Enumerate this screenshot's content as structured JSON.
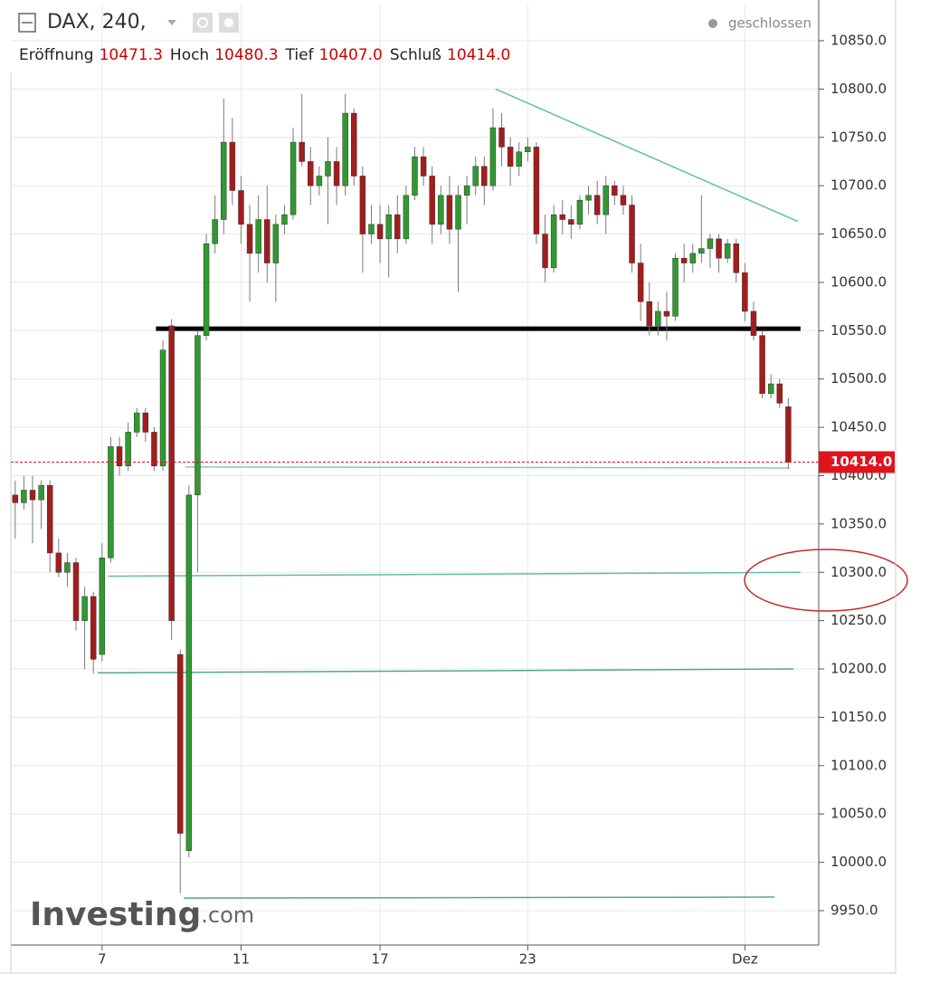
{
  "chart_data": {
    "type": "candlestick",
    "title": "DAX, 240,",
    "status": "geschlossen",
    "ohlc_header": [
      {
        "name": "Eröffnung",
        "value": "10471.3"
      },
      {
        "name": "Hoch",
        "value": "10480.3"
      },
      {
        "name": "Tief",
        "value": "10407.0"
      },
      {
        "name": "Schluß",
        "value": "10414.0"
      }
    ],
    "watermark": [
      "Investing",
      ".com"
    ],
    "up_color": "#2f9a2f",
    "down_color": "#a51c1c",
    "wick_color": "#7a7a7a",
    "open": [
      10380,
      10372,
      10385,
      10375,
      10390,
      10320,
      10300,
      10310,
      10250,
      10275,
      10215,
      10315,
      10430,
      10410,
      10445,
      10465,
      10445,
      10410,
      10555,
      10215,
      10012,
      10380,
      10545,
      10640,
      10665,
      10745,
      10695,
      10660,
      10630,
      10665,
      10620,
      10660,
      10670,
      10745,
      10725,
      10700,
      10710,
      10725,
      10700,
      10775,
      10710,
      10650,
      10660,
      10645,
      10670,
      10645,
      10690,
      10730,
      10710,
      10660,
      10690,
      10655,
      10690,
      10700,
      10720,
      10700,
      10760,
      10740,
      10720,
      10735,
      10740,
      10650,
      10615,
      10670,
      10665,
      10660,
      10685,
      10690,
      10670,
      10700,
      10690,
      10680,
      10620,
      10580,
      10555,
      10570,
      10565,
      10625,
      10620,
      10630,
      10635,
      10645,
      10625,
      10640,
      10610,
      10570,
      10545,
      10485,
      10495,
      10471.3
    ],
    "high": [
      10395,
      10400,
      10400,
      10395,
      10395,
      10335,
      10320,
      10315,
      10285,
      10280,
      10330,
      10440,
      10440,
      10455,
      10470,
      10470,
      10450,
      10540,
      10562,
      10220,
      10390,
      10550,
      10650,
      10690,
      10790,
      10770,
      10710,
      10680,
      10690,
      10700,
      10670,
      10680,
      10760,
      10795,
      10740,
      10720,
      10750,
      10740,
      10795,
      10780,
      10720,
      10680,
      10680,
      10680,
      10690,
      10700,
      10740,
      10740,
      10720,
      10700,
      10710,
      10700,
      10710,
      10730,
      10730,
      10780,
      10775,
      10750,
      10745,
      10750,
      10745,
      10670,
      10680,
      10685,
      10680,
      10690,
      10700,
      10705,
      10710,
      10705,
      10700,
      10690,
      10640,
      10600,
      10580,
      10590,
      10630,
      10640,
      10640,
      10690,
      10650,
      10650,
      10645,
      10645,
      10620,
      10580,
      10550,
      10505,
      10500,
      10480.3
    ],
    "low": [
      10335,
      10365,
      10330,
      10345,
      10300,
      10295,
      10285,
      10240,
      10200,
      10195,
      10208,
      10310,
      10400,
      10405,
      10440,
      10435,
      10405,
      10405,
      10230,
      9968,
      10005,
      10300,
      10540,
      10630,
      10650,
      10680,
      10640,
      10580,
      10610,
      10600,
      10580,
      10650,
      10665,
      10720,
      10680,
      10690,
      10660,
      10680,
      10690,
      10700,
      10610,
      10640,
      10620,
      10605,
      10630,
      10640,
      10685,
      10700,
      10640,
      10650,
      10640,
      10590,
      10660,
      10690,
      10680,
      10695,
      10720,
      10700,
      10710,
      10725,
      10640,
      10600,
      10610,
      10650,
      10645,
      10655,
      10670,
      10660,
      10650,
      10680,
      10670,
      10610,
      10560,
      10545,
      10545,
      10540,
      10560,
      10600,
      10610,
      10620,
      10615,
      10610,
      10620,
      10600,
      10560,
      10540,
      10480,
      10480,
      10470,
      10407
    ],
    "close": [
      10372,
      10385,
      10375,
      10390,
      10320,
      10300,
      10310,
      10250,
      10275,
      10210,
      10315,
      10430,
      10410,
      10445,
      10465,
      10445,
      10410,
      10530,
      10250,
      10030,
      10380,
      10545,
      10640,
      10665,
      10745,
      10695,
      10660,
      10630,
      10665,
      10620,
      10660,
      10670,
      10745,
      10725,
      10700,
      10710,
      10725,
      10700,
      10775,
      10710,
      10650,
      10660,
      10645,
      10670,
      10645,
      10690,
      10730,
      10710,
      10660,
      10690,
      10655,
      10690,
      10700,
      10720,
      10700,
      10760,
      10740,
      10720,
      10735,
      10740,
      10650,
      10615,
      10670,
      10665,
      10660,
      10685,
      10690,
      10670,
      10700,
      10690,
      10680,
      10620,
      10580,
      10555,
      10570,
      10565,
      10625,
      10620,
      10630,
      10635,
      10645,
      10625,
      10640,
      10610,
      10570,
      10545,
      10485,
      10495,
      10475,
      10414
    ],
    "xlim": [
      -0.5,
      92.5
    ],
    "xticks": [
      {
        "value": 10,
        "label": "7"
      },
      {
        "value": 26,
        "label": "11"
      },
      {
        "value": 42,
        "label": "17"
      },
      {
        "value": 59,
        "label": "23"
      },
      {
        "value": 84,
        "label": "Dez"
      }
    ],
    "ylim": [
      9914.4,
      10886.5
    ],
    "yticks": [
      {
        "value": 9950,
        "label": "9950.0"
      },
      {
        "value": 10000,
        "label": "10000.0"
      },
      {
        "value": 10050,
        "label": "10050.0"
      },
      {
        "value": 10100,
        "label": "10100.0"
      },
      {
        "value": 10150,
        "label": "10150.0"
      },
      {
        "value": 10200,
        "label": "10200.0"
      },
      {
        "value": 10250,
        "label": "10250.0"
      },
      {
        "value": 10300,
        "label": "10300.0"
      },
      {
        "value": 10350,
        "label": "10350.0"
      },
      {
        "value": 10400,
        "label": "10400.0"
      },
      {
        "value": 10450,
        "label": "10450.0"
      },
      {
        "value": 10500,
        "label": "10500.0"
      },
      {
        "value": 10550,
        "label": "10550.0"
      },
      {
        "value": 10600,
        "label": "10600.0"
      },
      {
        "value": 10650,
        "label": "10650.0"
      },
      {
        "value": 10700,
        "label": "10700.0"
      },
      {
        "value": 10750,
        "label": "10750.0"
      },
      {
        "value": 10800,
        "label": "10800.0"
      },
      {
        "value": 10850,
        "label": "10850.0"
      }
    ],
    "grid": true,
    "last_price": {
      "value": 10414,
      "label": "10414.0",
      "color": "#e0141e"
    },
    "drawings": [
      {
        "x": [
          55.3,
          90.1
        ],
        "y": [
          10800,
          10663
        ],
        "color": "#5fbfa8",
        "width": 1.5
      },
      {
        "x": [
          16.2,
          90.4
        ],
        "y": [
          10552,
          10552
        ],
        "color": "#000000",
        "width": 5
      },
      {
        "x": [
          19.6,
          89.1
        ],
        "y": [
          10409,
          10408
        ],
        "color": "#7fcfbd",
        "width": 1.5
      },
      {
        "x": [
          10.7,
          90.4
        ],
        "y": [
          10296,
          10300
        ],
        "color": "#5fbfa8",
        "width": 1.5
      },
      {
        "x": [
          9.5,
          89.6
        ],
        "y": [
          10196,
          10200
        ],
        "color": "#4fa894",
        "width": 1.5
      },
      {
        "x": [
          19.4,
          87.4
        ],
        "y": [
          9963,
          9964
        ],
        "color": "#4fa894",
        "width": 1.5
      }
    ]
  }
}
